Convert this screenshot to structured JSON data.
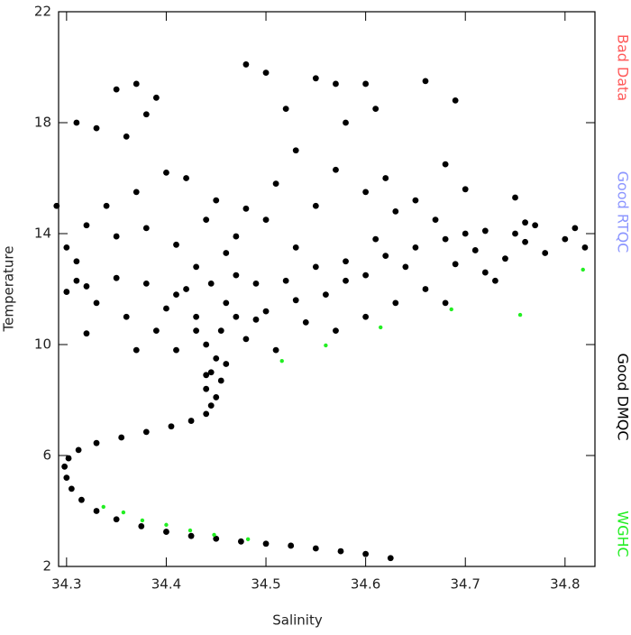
{
  "chart_data": {
    "type": "scatter",
    "x_label": "Salinity",
    "y_label": "Temperature",
    "xlim": [
      34.292,
      34.83
    ],
    "ylim": [
      2,
      22
    ],
    "xticks": [
      34.3,
      34.4,
      34.5,
      34.6,
      34.7,
      34.8
    ],
    "yticks": [
      2,
      6,
      10,
      14,
      18,
      22
    ],
    "series": [
      {
        "name": "Bad Data",
        "color": "#ff5a5a",
        "x": [],
        "values": []
      },
      {
        "name": "Good RTQC",
        "color": "#8c96ff",
        "x": [],
        "values": []
      },
      {
        "name": "Good DMQC",
        "color": "#000000",
        "x": [
          34.625,
          34.6,
          34.575,
          34.55,
          34.525,
          34.5,
          34.475,
          34.45,
          34.425,
          34.4,
          34.375,
          34.35,
          34.33,
          34.315,
          34.305,
          34.3,
          34.298,
          34.302,
          34.312,
          34.33,
          34.355,
          34.38,
          34.405,
          34.425,
          34.44,
          34.445,
          34.45,
          34.44,
          34.455,
          34.445,
          34.45,
          34.44,
          34.455,
          34.43,
          34.46,
          34.42,
          34.47,
          34.4,
          34.38,
          34.35,
          34.32,
          34.3,
          34.31,
          34.33,
          34.36,
          34.39,
          34.41,
          34.48,
          34.5,
          34.52,
          34.55,
          34.58,
          34.6,
          34.62,
          34.65,
          34.68,
          34.7,
          34.72,
          34.75,
          34.77,
          34.8,
          34.82,
          34.78,
          34.74,
          34.69,
          34.66,
          34.63,
          34.6,
          34.57,
          34.54,
          34.51,
          34.49,
          34.56,
          34.53,
          34.5,
          34.47,
          34.44,
          34.41,
          34.38,
          34.35,
          34.32,
          34.3,
          34.34,
          34.37,
          34.4,
          34.36,
          34.38,
          34.33,
          34.31,
          34.35,
          34.37,
          34.39,
          34.42,
          34.45,
          34.48,
          34.51,
          34.53,
          34.52,
          34.48,
          34.5,
          34.55,
          34.57,
          34.58,
          34.6,
          34.61,
          34.57,
          34.55,
          34.6,
          34.63,
          34.62,
          34.66,
          34.69,
          34.68,
          34.65,
          34.7,
          34.75,
          34.76,
          34.81,
          34.29,
          34.31,
          34.43,
          34.46,
          34.49,
          34.53,
          34.58,
          34.61,
          34.64,
          34.67,
          34.71,
          34.73,
          34.68,
          34.72,
          34.76,
          34.32,
          34.37,
          34.44,
          34.46,
          34.43,
          34.47,
          34.41,
          34.445
        ],
        "values": [
          2.3,
          2.45,
          2.55,
          2.65,
          2.75,
          2.82,
          2.9,
          3.0,
          3.1,
          3.25,
          3.45,
          3.7,
          4.0,
          4.4,
          4.8,
          5.2,
          5.6,
          5.9,
          6.2,
          6.45,
          6.65,
          6.85,
          7.05,
          7.25,
          7.5,
          7.8,
          8.1,
          8.4,
          8.7,
          9.0,
          9.5,
          10.0,
          10.5,
          11.0,
          11.5,
          12.0,
          12.5,
          11.3,
          12.2,
          12.4,
          12.1,
          11.9,
          12.3,
          11.5,
          11.0,
          10.5,
          9.8,
          10.2,
          11.2,
          12.3,
          12.8,
          13.0,
          12.5,
          13.2,
          13.5,
          13.8,
          14.0,
          14.1,
          14.0,
          14.3,
          13.8,
          13.5,
          13.3,
          13.1,
          12.9,
          12.0,
          11.5,
          11.0,
          10.5,
          10.8,
          9.8,
          10.9,
          11.8,
          13.5,
          14.5,
          13.9,
          14.5,
          13.6,
          14.2,
          13.9,
          14.3,
          13.5,
          15.0,
          15.5,
          16.2,
          17.5,
          18.3,
          17.8,
          18.0,
          19.2,
          19.4,
          18.9,
          16.0,
          15.2,
          14.9,
          15.8,
          17.0,
          18.5,
          20.1,
          19.8,
          19.6,
          19.4,
          18.0,
          19.4,
          18.5,
          16.3,
          15.0,
          15.5,
          14.8,
          16.0,
          19.5,
          18.8,
          16.5,
          15.2,
          15.6,
          15.3,
          14.4,
          14.2,
          15.0,
          13.0,
          12.8,
          13.3,
          12.2,
          11.6,
          12.3,
          13.8,
          12.8,
          14.5,
          13.4,
          12.3,
          11.5,
          12.6,
          13.7,
          10.4,
          9.8,
          8.9,
          9.3,
          10.5,
          11.0,
          11.8,
          12.2
        ]
      },
      {
        "name": "WGHC",
        "color": "#22ee22",
        "x": [
          34.337,
          34.357,
          34.376,
          34.4,
          34.424,
          34.448,
          34.482,
          34.516,
          34.56,
          34.615,
          34.686,
          34.755,
          34.818
        ],
        "values": [
          4.15,
          3.95,
          3.66,
          3.5,
          3.3,
          3.14,
          2.98,
          9.41,
          9.97,
          10.62,
          11.27,
          11.07,
          12.7
        ]
      }
    ]
  }
}
